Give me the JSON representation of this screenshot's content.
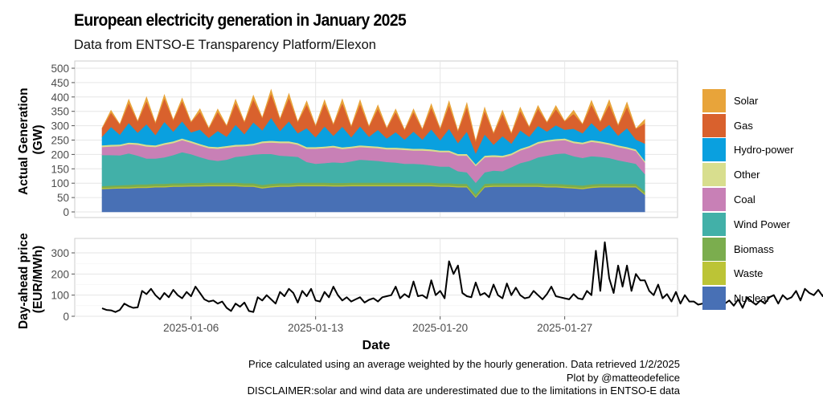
{
  "title": "European electricity generation in January 2025",
  "subtitle": "Data from ENTSO-E Transparency Platform/Elexon",
  "caption": {
    "line1": "Price calculated using an average weighted by the hourly generation. Data retrieved 1/2/2025",
    "line2": "Plot by @matteodefelice",
    "line3": "DISCLAIMER:solar and wind data are underestimated due to the limitations in ENTSO-E data"
  },
  "legend": [
    {
      "name": "Solar",
      "color": "#E8A43A"
    },
    {
      "name": "Gas",
      "color": "#D9612D"
    },
    {
      "name": "Hydro-power",
      "color": "#0AA0DF"
    },
    {
      "name": "Other",
      "color": "#D8DE8E"
    },
    {
      "name": "Coal",
      "color": "#C880B6"
    },
    {
      "name": "Wind Power",
      "color": "#42B0A8"
    },
    {
      "name": "Biomass",
      "color": "#7BAD4E"
    },
    {
      "name": "Waste",
      "color": "#BCC436"
    },
    {
      "name": "Nuclear",
      "color": "#4870B5"
    }
  ],
  "chart_data": [
    {
      "type": "area",
      "stacked": true,
      "ylabel": "Actual Generation\n(GW)",
      "ylabel_lines": [
        "Actual Generation",
        "(GW)"
      ],
      "ylim": [
        0,
        520
      ],
      "yticks": [
        "0",
        "50",
        "100",
        "150",
        "200",
        "250",
        "300",
        "350",
        "400",
        "450",
        "500"
      ],
      "grid": true,
      "x_unit": "days since 2025-01-01, half-day resolution (00:00, 12:00)",
      "x_start": "2025-01-01",
      "step_days": 0.5,
      "series": [
        {
          "name": "Nuclear",
          "values": [
            80,
            81,
            82,
            82,
            84,
            84,
            86,
            86,
            88,
            88,
            89,
            89,
            90,
            90,
            90,
            90,
            88,
            88,
            82,
            86,
            88,
            88,
            90,
            90,
            90,
            90,
            89,
            89,
            90,
            90,
            90,
            90,
            90,
            90,
            90,
            90,
            90,
            90,
            88,
            88,
            86,
            86,
            50,
            86,
            88,
            88,
            88,
            88,
            88,
            88,
            86,
            86,
            84,
            82,
            80,
            84,
            86,
            86,
            86,
            86,
            86,
            60
          ]
        },
        {
          "name": "Waste",
          "values": [
            4,
            4,
            4,
            4,
            4,
            4,
            4,
            4,
            4,
            4,
            4,
            4,
            4,
            4,
            4,
            4,
            4,
            4,
            4,
            4,
            4,
            4,
            4,
            4,
            4,
            4,
            4,
            4,
            4,
            4,
            4,
            4,
            4,
            4,
            4,
            4,
            4,
            4,
            4,
            4,
            4,
            4,
            4,
            4,
            4,
            4,
            4,
            4,
            4,
            4,
            4,
            4,
            4,
            4,
            4,
            4,
            4,
            4,
            4,
            4,
            4,
            4
          ]
        },
        {
          "name": "Biomass",
          "values": [
            6,
            7,
            7,
            8,
            8,
            8,
            8,
            8,
            8,
            8,
            8,
            8,
            8,
            8,
            8,
            8,
            8,
            8,
            8,
            8,
            8,
            8,
            8,
            8,
            8,
            8,
            8,
            8,
            8,
            8,
            8,
            8,
            8,
            8,
            8,
            8,
            8,
            8,
            8,
            8,
            8,
            8,
            8,
            8,
            8,
            8,
            8,
            8,
            8,
            8,
            8,
            8,
            8,
            8,
            8,
            8,
            8,
            8,
            8,
            8,
            8,
            8
          ]
        },
        {
          "name": "Wind Power",
          "values": [
            108,
            106,
            104,
            110,
            100,
            90,
            88,
            92,
            98,
            108,
            100,
            90,
            80,
            76,
            80,
            90,
            95,
            100,
            108,
            104,
            96,
            94,
            90,
            72,
            66,
            68,
            72,
            70,
            74,
            80,
            78,
            76,
            72,
            70,
            66,
            66,
            64,
            60,
            58,
            58,
            44,
            40,
            40,
            40,
            44,
            42,
            56,
            70,
            78,
            90,
            98,
            104,
            108,
            100,
            96,
            98,
            94,
            90,
            82,
            76,
            70,
            60
          ]
        },
        {
          "name": "Coal",
          "values": [
            28,
            30,
            32,
            32,
            38,
            42,
            40,
            44,
            42,
            42,
            40,
            40,
            40,
            42,
            42,
            36,
            34,
            32,
            38,
            40,
            44,
            46,
            42,
            46,
            52,
            52,
            52,
            48,
            46,
            44,
            44,
            44,
            44,
            46,
            48,
            46,
            48,
            50,
            50,
            50,
            54,
            58,
            58,
            52,
            48,
            48,
            42,
            44,
            46,
            48,
            48,
            46,
            46,
            46,
            48,
            50,
            48,
            46,
            46,
            46,
            44,
            40
          ]
        },
        {
          "name": "Other",
          "values": [
            6,
            6,
            6,
            6,
            6,
            6,
            6,
            6,
            6,
            6,
            6,
            6,
            6,
            6,
            6,
            6,
            6,
            6,
            6,
            6,
            6,
            6,
            6,
            6,
            6,
            6,
            6,
            6,
            6,
            6,
            6,
            6,
            6,
            6,
            6,
            6,
            6,
            6,
            6,
            6,
            6,
            6,
            6,
            6,
            6,
            6,
            6,
            6,
            6,
            6,
            6,
            6,
            6,
            6,
            6,
            6,
            6,
            6,
            6,
            6,
            6,
            6
          ]
        },
        {
          "name": "Hydro-power",
          "values": [
            30,
            62,
            34,
            68,
            36,
            72,
            36,
            74,
            34,
            60,
            30,
            50,
            30,
            56,
            32,
            70,
            36,
            74,
            38,
            80,
            36,
            70,
            34,
            66,
            34,
            70,
            34,
            72,
            32,
            66,
            32,
            58,
            32,
            54,
            30,
            60,
            32,
            70,
            36,
            76,
            38,
            78,
            38,
            74,
            36,
            68,
            34,
            64,
            32,
            56,
            30,
            48,
            30,
            44,
            32,
            60,
            34,
            64,
            34,
            66,
            34,
            60
          ]
        },
        {
          "name": "Gas",
          "values": [
            30,
            50,
            36,
            70,
            40,
            80,
            42,
            82,
            40,
            70,
            36,
            62,
            34,
            66,
            38,
            76,
            42,
            80,
            44,
            84,
            42,
            82,
            40,
            82,
            40,
            80,
            40,
            82,
            38,
            78,
            36,
            74,
            36,
            70,
            34,
            68,
            36,
            76,
            40,
            82,
            42,
            86,
            42,
            82,
            40,
            78,
            36,
            68,
            34,
            60,
            32,
            56,
            30,
            52,
            32,
            64,
            34,
            70,
            36,
            74,
            38,
            70
          ]
        },
        {
          "name": "Solar",
          "values": [
            0,
            8,
            0,
            12,
            0,
            14,
            0,
            12,
            0,
            10,
            0,
            10,
            0,
            10,
            0,
            12,
            0,
            14,
            0,
            14,
            0,
            14,
            0,
            12,
            0,
            12,
            0,
            14,
            0,
            14,
            0,
            12,
            0,
            10,
            0,
            10,
            0,
            12,
            0,
            14,
            0,
            14,
            0,
            12,
            0,
            12,
            0,
            12,
            0,
            10,
            0,
            12,
            0,
            12,
            0,
            14,
            0,
            16,
            0,
            16,
            0,
            14
          ]
        }
      ]
    },
    {
      "type": "line",
      "ylabel": "Day-ahead price\n(EUR/MWh)",
      "ylabel_lines": [
        "Day-ahead price",
        "(EUR/MWh)"
      ],
      "ylim": [
        0,
        370
      ],
      "yticks": [
        "0",
        "100",
        "200",
        "300"
      ],
      "xlabel": "Date",
      "xticks": [
        "2025-01-06",
        "2025-01-13",
        "2025-01-20",
        "2025-01-27"
      ],
      "grid": true,
      "x_start": "2025-01-01",
      "step_days": 0.25,
      "series": [
        {
          "name": "Price",
          "values": [
            38,
            30,
            28,
            20,
            30,
            60,
            48,
            40,
            42,
            120,
            105,
            130,
            100,
            80,
            110,
            90,
            125,
            100,
            85,
            115,
            95,
            140,
            110,
            80,
            70,
            75,
            60,
            70,
            40,
            25,
            60,
            45,
            65,
            25,
            20,
            90,
            75,
            100,
            80,
            60,
            115,
            95,
            130,
            110,
            65,
            120,
            95,
            130,
            75,
            70,
            115,
            90,
            140,
            100,
            75,
            90,
            70,
            80,
            90,
            65,
            78,
            85,
            70,
            90,
            95,
            100,
            140,
            85,
            105,
            90,
            165,
            95,
            100,
            85,
            170,
            100,
            120,
            85,
            260,
            200,
            240,
            110,
            95,
            90,
            160,
            100,
            110,
            90,
            150,
            100,
            85,
            155,
            100,
            135,
            100,
            85,
            90,
            120,
            100,
            80,
            105,
            140,
            95,
            90,
            85,
            80,
            105,
            85,
            80,
            120,
            100,
            310,
            120,
            350,
            180,
            110,
            240,
            140,
            240,
            120,
            200,
            170,
            170,
            120,
            100,
            150,
            85,
            105,
            70,
            115,
            60,
            100,
            70,
            70,
            55,
            60,
            90,
            70,
            80,
            60,
            60,
            75,
            50,
            80,
            40,
            90,
            70,
            55,
            75,
            60,
            90,
            100,
            60,
            100,
            80,
            90,
            120,
            75,
            130,
            110,
            100,
            125,
            95,
            140,
            110,
            160,
            115,
            110
          ]
        }
      ]
    }
  ]
}
